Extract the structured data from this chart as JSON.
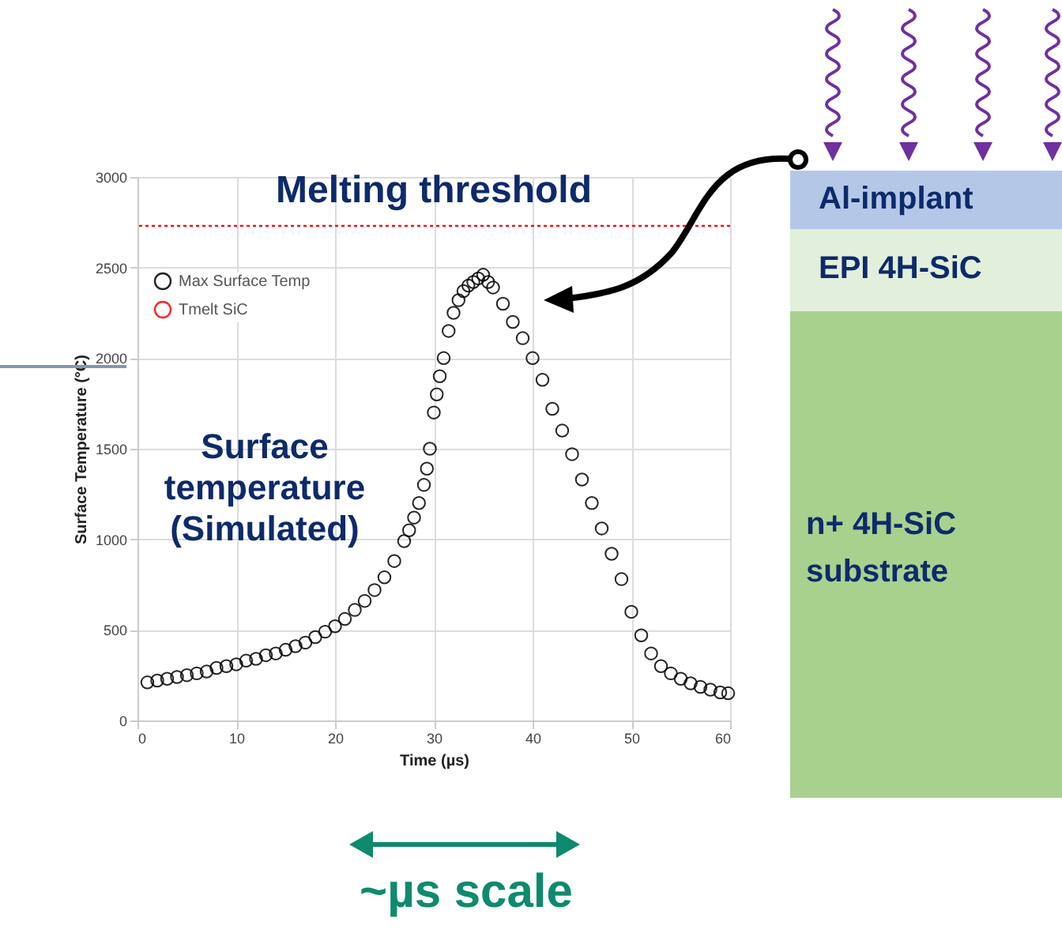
{
  "chart_data": {
    "type": "scatter",
    "xlabel": "Time (µs)",
    "ylabel": "Surface Temperature (°C)",
    "xlim": [
      0,
      60
    ],
    "xticks": [
      0,
      10,
      20,
      30,
      40,
      50,
      60
    ],
    "ylim": [
      0,
      3000
    ],
    "yticks": [
      0,
      500,
      1000,
      1500,
      2000,
      2500,
      3000
    ],
    "grid": true,
    "legend": "top left",
    "marker": "circle",
    "series": [
      {
        "name": "Max Surface Temp",
        "color": "#000000",
        "x": [
          1,
          2,
          3,
          4,
          5,
          6,
          7,
          8,
          9,
          10,
          11,
          12,
          13,
          14,
          15,
          16,
          17,
          18,
          19,
          20,
          21,
          22,
          23,
          24,
          25,
          26,
          27,
          27.5,
          28,
          28.5,
          29,
          29.3,
          29.6,
          30,
          30.3,
          30.6,
          31,
          31.5,
          32,
          32.5,
          33,
          33.5,
          34,
          34.5,
          35,
          35.5,
          36,
          37,
          38,
          39,
          40,
          41,
          42,
          43,
          44,
          45,
          46,
          47,
          48,
          49,
          50,
          51,
          52,
          53,
          54,
          55,
          56,
          57,
          58,
          59,
          59.8
        ],
        "values": [
          210,
          220,
          230,
          240,
          250,
          260,
          270,
          290,
          300,
          310,
          330,
          340,
          360,
          370,
          390,
          410,
          430,
          460,
          490,
          520,
          560,
          610,
          660,
          720,
          790,
          880,
          990,
          1050,
          1120,
          1200,
          1300,
          1390,
          1500,
          1700,
          1800,
          1900,
          2000,
          2150,
          2250,
          2320,
          2370,
          2400,
          2420,
          2440,
          2460,
          2420,
          2390,
          2300,
          2200,
          2110,
          2000,
          1880,
          1720,
          1600,
          1470,
          1330,
          1200,
          1060,
          920,
          780,
          600,
          470,
          370,
          300,
          260,
          230,
          205,
          185,
          170,
          155,
          150
        ]
      }
    ],
    "ref_lines": [
      {
        "axis": "y",
        "value": 2730,
        "label": "Tmelt SiC",
        "color": "#ff0000",
        "line_style": "dotted"
      }
    ],
    "annotations": [
      "Melting threshold",
      "Surface temperature (Simulated)",
      "~µs scale",
      "Al-implant",
      "EPI 4H-SiC",
      "n+ 4H-SiC substrate"
    ]
  }
}
